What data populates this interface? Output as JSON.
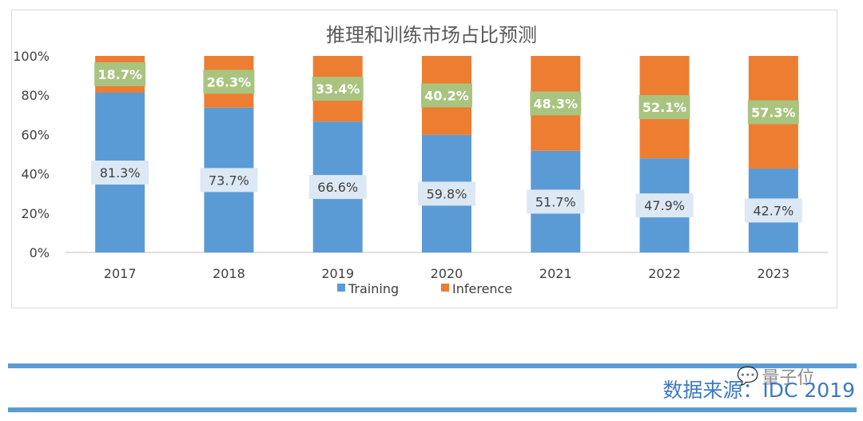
{
  "chart_data": {
    "type": "bar",
    "stacked": true,
    "title": "推理和训练市场占比预测",
    "categories": [
      "2017",
      "2018",
      "2019",
      "2020",
      "2021",
      "2022",
      "2023"
    ],
    "series": [
      {
        "name": "Training",
        "color": "#5b9bd5",
        "values": [
          81.3,
          73.7,
          66.6,
          59.8,
          51.7,
          47.9,
          42.7
        ],
        "labels": [
          "81.3%",
          "73.7%",
          "66.6%",
          "59.8%",
          "51.7%",
          "47.9%",
          "42.7%"
        ]
      },
      {
        "name": "Inference",
        "color": "#ed7d31",
        "values": [
          18.7,
          26.3,
          33.4,
          40.2,
          48.3,
          52.1,
          57.3
        ],
        "labels": [
          "18.7%",
          "26.3%",
          "33.4%",
          "40.2%",
          "48.3%",
          "52.1%",
          "57.3%"
        ]
      }
    ],
    "ylim": [
      0,
      100
    ],
    "yticks": [
      "0%",
      "20%",
      "40%",
      "60%",
      "80%",
      "100%"
    ],
    "xlabel": "",
    "ylabel": "",
    "legend_position": "bottom"
  },
  "footer": {
    "source": "数据来源：IDC 2019",
    "watermark_text": "量子位",
    "watermark_icon": "wechat-icon"
  },
  "colors": {
    "training_label_bg": "#dde8f5",
    "inference_label_bg": "#a9c47f",
    "rule": "#5b9bd5"
  }
}
